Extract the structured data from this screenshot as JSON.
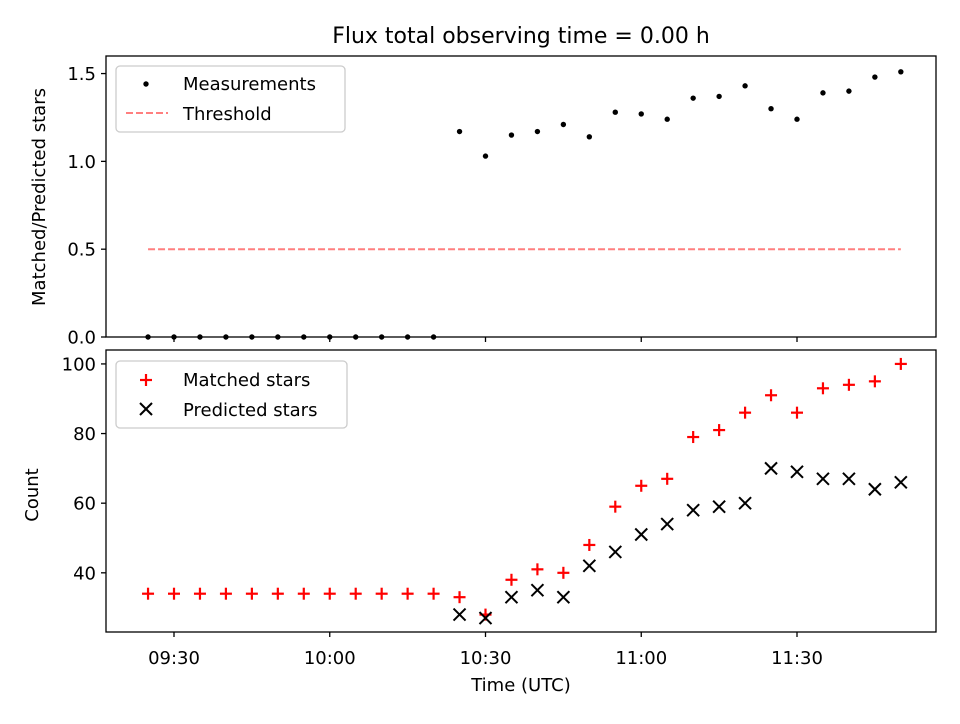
{
  "chart_data": [
    {
      "type": "scatter",
      "title": "Flux total observing time = 0.00 h",
      "ylabel": "Matched/Predicted stars",
      "xlabel": "",
      "ylim": [
        0,
        1.6
      ],
      "yticks": [
        0.0,
        0.5,
        1.0,
        1.5
      ],
      "yticklabels": [
        "0.0",
        "0.5",
        "1.0",
        "1.5"
      ],
      "legend": "top-left",
      "series": [
        {
          "name": "Measurements",
          "kind": "dots",
          "color": "#000000",
          "x": [
            "09:25",
            "09:30",
            "09:35",
            "09:40",
            "09:45",
            "09:50",
            "09:55",
            "10:00",
            "10:05",
            "10:10",
            "10:15",
            "10:20",
            "10:25",
            "10:30",
            "10:35",
            "10:40",
            "10:45",
            "10:50",
            "10:55",
            "11:00",
            "11:05",
            "11:10",
            "11:15",
            "11:20",
            "11:25",
            "11:30",
            "11:35",
            "11:40",
            "11:45",
            "11:50"
          ],
          "y": [
            0,
            0,
            0,
            0,
            0,
            0,
            0,
            0,
            0,
            0,
            0,
            0,
            1.17,
            1.03,
            1.15,
            1.17,
            1.21,
            1.14,
            1.28,
            1.27,
            1.24,
            1.36,
            1.37,
            1.43,
            1.3,
            1.24,
            1.39,
            1.4,
            1.48,
            1.51
          ]
        },
        {
          "name": "Threshold",
          "kind": "dashed-line",
          "color": "#ff7f7f",
          "x": [
            "09:25",
            "11:50"
          ],
          "y": [
            0.5,
            0.5
          ]
        }
      ]
    },
    {
      "type": "scatter",
      "title": "",
      "ylabel": "Count",
      "xlabel": "Time (UTC)",
      "ylim": [
        23,
        104
      ],
      "yticks": [
        40,
        60,
        80,
        100
      ],
      "yticklabels": [
        "40",
        "60",
        "80",
        "100"
      ],
      "xticks": [
        "09:30",
        "10:00",
        "10:30",
        "11:00",
        "11:30"
      ],
      "legend": "top-left",
      "series": [
        {
          "name": "Matched stars",
          "kind": "plus",
          "color": "#ff0000",
          "x": [
            "09:25",
            "09:30",
            "09:35",
            "09:40",
            "09:45",
            "09:50",
            "09:55",
            "10:00",
            "10:05",
            "10:10",
            "10:15",
            "10:20",
            "10:25",
            "10:30",
            "10:35",
            "10:40",
            "10:45",
            "10:50",
            "10:55",
            "11:00",
            "11:05",
            "11:10",
            "11:15",
            "11:20",
            "11:25",
            "11:30",
            "11:35",
            "11:40",
            "11:45",
            "11:50"
          ],
          "y": [
            34,
            34,
            34,
            34,
            34,
            34,
            34,
            34,
            34,
            34,
            34,
            34,
            33,
            28,
            38,
            41,
            40,
            48,
            59,
            65,
            67,
            79,
            81,
            86,
            91,
            86,
            93,
            94,
            95,
            100
          ]
        },
        {
          "name": "Predicted stars",
          "kind": "x",
          "color": "#000000",
          "x": [
            "10:25",
            "10:30",
            "10:35",
            "10:40",
            "10:45",
            "10:50",
            "10:55",
            "11:00",
            "11:05",
            "11:10",
            "11:15",
            "11:20",
            "11:25",
            "11:30",
            "11:35",
            "11:40",
            "11:45",
            "11:50"
          ],
          "y": [
            28,
            27,
            33,
            35,
            33,
            42,
            46,
            51,
            54,
            58,
            59,
            60,
            70,
            69,
            67,
            67,
            64,
            66
          ]
        }
      ]
    }
  ]
}
